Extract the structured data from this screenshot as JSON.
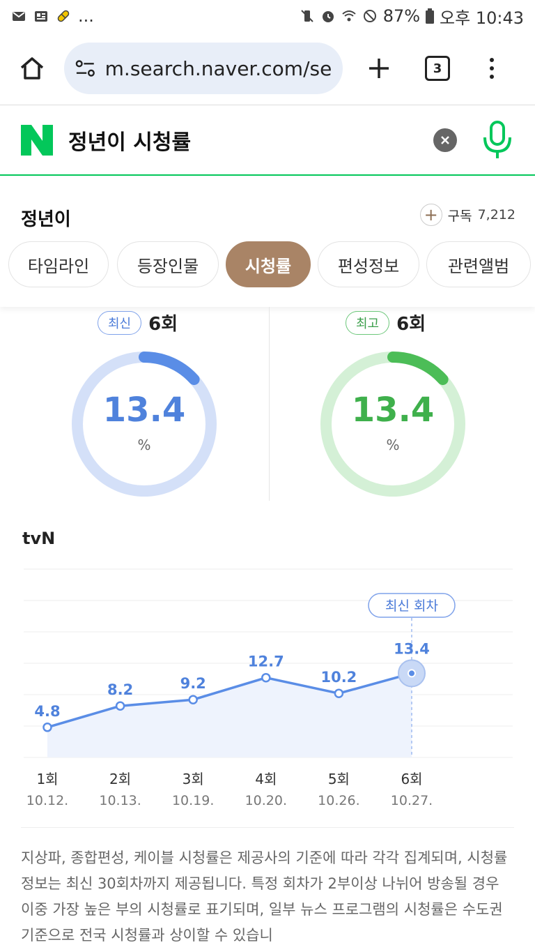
{
  "status_bar": {
    "left_icons": [
      "mail-icon",
      "news-icon",
      "pill-icon"
    ],
    "ellipsis": "...",
    "battery": "87%",
    "time": "오후 10:43"
  },
  "browser": {
    "url": "m.search.naver.com/sea",
    "tab_count": "3"
  },
  "search": {
    "query": "정년이 시청률"
  },
  "program": {
    "title": "정년이",
    "subscribe_label": "구독",
    "subscriber_count": "7,212",
    "tabs": [
      {
        "label": "타임라인",
        "active": false
      },
      {
        "label": "등장인물",
        "active": false
      },
      {
        "label": "시청률",
        "active": true
      },
      {
        "label": "편성정보",
        "active": false
      },
      {
        "label": "관련앨범",
        "active": false
      }
    ]
  },
  "ratings": {
    "latest": {
      "badge": "최신",
      "episode": "6회",
      "value": "13.4",
      "unit": "%",
      "fraction": 0.134,
      "color": "#5a8de6",
      "track": "#d4e0f8"
    },
    "highest": {
      "badge": "최고",
      "episode": "6회",
      "value": "13.4",
      "unit": "%",
      "fraction": 0.134,
      "color": "#4cbd57",
      "track": "#d4f0d6"
    }
  },
  "chart_data": {
    "type": "line",
    "channel": "tvN",
    "callout": "최신 회차",
    "categories": [
      "1회",
      "2회",
      "3회",
      "4회",
      "5회",
      "6회"
    ],
    "dates": [
      "10.12.",
      "10.13.",
      "10.19.",
      "10.20.",
      "10.26.",
      "10.27."
    ],
    "values": [
      4.8,
      8.2,
      9.2,
      12.7,
      10.2,
      13.4
    ],
    "ylim": [
      0,
      30
    ],
    "grid": true,
    "color": "#5a8de6"
  },
  "notice": {
    "text": "지상파, 종합편성, 케이블 시청률은 제공사의 기준에 따라 각각 집계되며, 시청률 정보는 최신 30회차까지 제공됩니다. 특정 회차가 2부이상 나뉘어 방송될 경우 이중 가장 높은 부의 시청률로 표기되며, 일부 뉴스 프로그램의 시청률은 수도권 기준으로 전국 시청률과 상이할 수 있습니"
  }
}
